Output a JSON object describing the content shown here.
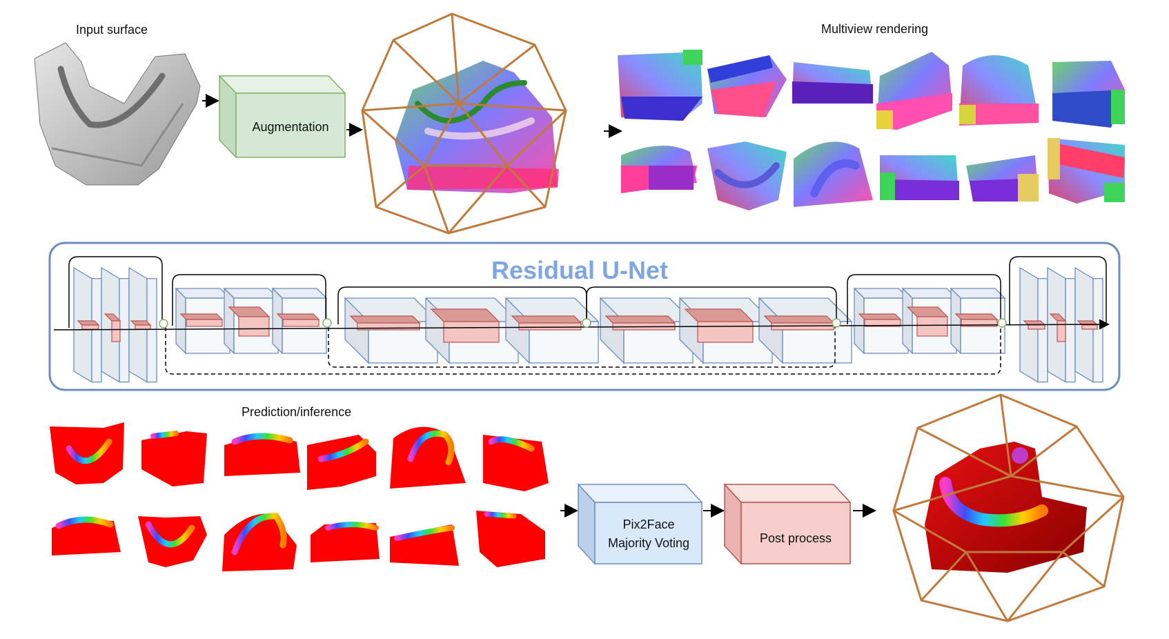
{
  "labels": {
    "input_surface": "Input surface",
    "augmentation": "Augmentation",
    "multiview_rendering": "Multiview rendering",
    "residual_unet": "Residual U-Net",
    "prediction_inference": "Prediction/inference",
    "pix2face_line1": "Pix2Face",
    "pix2face_line2": "Majority Voting",
    "post_process": "Post process"
  },
  "colors": {
    "augmentation_box": "#d5e8d4",
    "augmentation_border": "#82b366",
    "pix2face_box": "#dae8fc",
    "pix2face_border": "#6c8ebf",
    "post_process_box": "#f8cecc",
    "post_process_border": "#b85450",
    "unet_frame": "#6c8ebf",
    "unet_title": "#7ea6e0",
    "cage": "#c07a3c",
    "prediction_red": "#ff0000"
  }
}
